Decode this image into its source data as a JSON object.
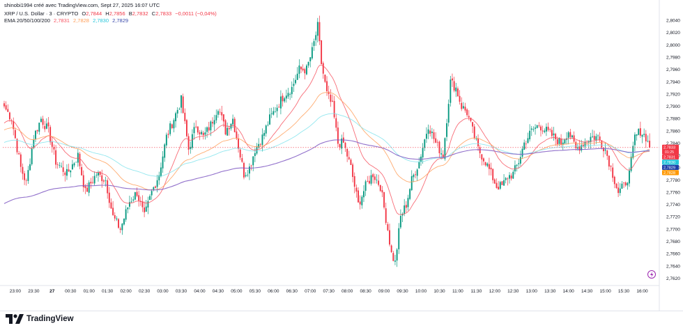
{
  "header": {
    "credit": "shinobi1994 créé avec TradingView.com, Sept 27, 2025 16:07 UTC"
  },
  "legend": {
    "symbol": "XRP / U.S. Dollar · 3 · CRYPTO",
    "o_label": "O",
    "o": "2,7844",
    "h_label": "H",
    "h": "2,7856",
    "l_label": "B",
    "l": "2,7832",
    "c_label": "C",
    "c": "2,7833",
    "change": "−0,0011 (−0,04%)",
    "ema_label": "EMA 20/50/100/200",
    "ema20": "2,7831",
    "ema50": "2,7828",
    "ema100": "2,7830",
    "ema200": "2,7829"
  },
  "price_badges": [
    {
      "text": "2,7833",
      "sub": "01:25",
      "color": "#f23645",
      "value": 2.7833
    },
    {
      "text": "2,7831",
      "color": "#f23645",
      "value": 2.7831
    },
    {
      "text": "2,7830",
      "color": "#26c6da",
      "value": 2.783
    },
    {
      "text": "2,7829",
      "color": "#1e3fa8",
      "value": 2.7829
    },
    {
      "text": "2,7828",
      "color": "#ff9800",
      "value": 2.7828
    }
  ],
  "colors": {
    "up": "#089981",
    "down": "#f23645",
    "ema20": "#f7525f",
    "ema50": "#ff9e58",
    "ema100": "#7fe3ec",
    "ema200": "#7e57c2",
    "price_line": "#f23645"
  },
  "brand": {
    "name": "TradingView"
  },
  "chart_data": {
    "type": "candlestick",
    "y_ticks": [
      "2,8040",
      "2,8020",
      "2,8000",
      "2,7980",
      "2,7960",
      "2,7940",
      "2,7920",
      "2,7900",
      "2,7880",
      "2,7860",
      "2,7840",
      "2,7820",
      "2,7800",
      "2,7780",
      "2,7760",
      "2,7740",
      "2,7720",
      "2,7700",
      "2,7680",
      "2,7660",
      "2,7640",
      "2,7620"
    ],
    "ylim": [
      2.7615,
      2.8046
    ],
    "x_ticks": [
      "23:00",
      "23:30",
      "27",
      "00:30",
      "01:00",
      "01:30",
      "02:00",
      "02:30",
      "03:00",
      "03:30",
      "04:00",
      "04:30",
      "05:00",
      "05:30",
      "06:00",
      "06:30",
      "07:00",
      "07:30",
      "08:00",
      "08:30",
      "09:00",
      "09:30",
      "10:00",
      "10:30",
      "11:00",
      "11:30",
      "12:00",
      "12:30",
      "13:00",
      "13:30",
      "14:00",
      "14:30",
      "15:00",
      "15:30",
      "16:00"
    ],
    "x_tick_index": [
      6,
      16,
      26,
      36,
      46,
      56,
      66,
      76,
      86,
      96,
      106,
      116,
      126,
      136,
      146,
      156,
      166,
      176,
      186,
      196,
      206,
      216,
      226,
      236,
      246,
      256,
      266,
      276,
      286,
      296,
      306,
      316,
      326,
      336,
      346
    ],
    "close_anchors": [
      [
        0,
        2.79
      ],
      [
        4,
        2.788
      ],
      [
        9,
        2.78
      ],
      [
        12,
        2.7775
      ],
      [
        16,
        2.785
      ],
      [
        20,
        2.788
      ],
      [
        24,
        2.786
      ],
      [
        28,
        2.781
      ],
      [
        34,
        2.779
      ],
      [
        40,
        2.782
      ],
      [
        44,
        2.776
      ],
      [
        50,
        2.779
      ],
      [
        55,
        2.778
      ],
      [
        59,
        2.772
      ],
      [
        63,
        2.77
      ],
      [
        68,
        2.7745
      ],
      [
        72,
        2.776
      ],
      [
        76,
        2.772
      ],
      [
        80,
        2.776
      ],
      [
        84,
        2.779
      ],
      [
        88,
        2.785
      ],
      [
        92,
        2.788
      ],
      [
        96,
        2.791
      ],
      [
        100,
        2.783
      ],
      [
        104,
        2.787
      ],
      [
        108,
        2.785
      ],
      [
        112,
        2.787
      ],
      [
        116,
        2.79
      ],
      [
        120,
        2.786
      ],
      [
        124,
        2.788
      ],
      [
        128,
        2.782
      ],
      [
        130,
        2.779
      ],
      [
        133,
        2.78
      ],
      [
        136,
        2.783
      ],
      [
        140,
        2.785
      ],
      [
        144,
        2.788
      ],
      [
        148,
        2.79
      ],
      [
        152,
        2.792
      ],
      [
        156,
        2.793
      ],
      [
        160,
        2.796
      ],
      [
        164,
        2.796
      ],
      [
        167,
        2.799
      ],
      [
        170,
        2.803
      ],
      [
        172,
        2.797
      ],
      [
        175,
        2.792
      ],
      [
        178,
        2.79
      ],
      [
        181,
        2.784
      ],
      [
        184,
        2.784
      ],
      [
        188,
        2.78
      ],
      [
        192,
        2.774
      ],
      [
        196,
        2.777
      ],
      [
        200,
        2.779
      ],
      [
        204,
        2.777
      ],
      [
        208,
        2.77
      ],
      [
        210,
        2.766
      ],
      [
        212,
        2.7645
      ],
      [
        215,
        2.772
      ],
      [
        218,
        2.774
      ],
      [
        221,
        2.778
      ],
      [
        225,
        2.781
      ],
      [
        230,
        2.787
      ],
      [
        234,
        2.784
      ],
      [
        238,
        2.782
      ],
      [
        242,
        2.794
      ],
      [
        245,
        2.793
      ],
      [
        248,
        2.79
      ],
      [
        251,
        2.789
      ],
      [
        254,
        2.786
      ],
      [
        257,
        2.783
      ],
      [
        261,
        2.781
      ],
      [
        264,
        2.779
      ],
      [
        267,
        2.777
      ],
      [
        270,
        2.777
      ],
      [
        273,
        2.7785
      ],
      [
        276,
        2.779
      ],
      [
        279,
        2.781
      ],
      [
        282,
        2.784
      ],
      [
        286,
        2.786
      ],
      [
        290,
        2.787
      ],
      [
        294,
        2.786
      ],
      [
        298,
        2.785
      ],
      [
        302,
        2.784
      ],
      [
        306,
        2.786
      ],
      [
        310,
        2.783
      ],
      [
        314,
        2.784
      ],
      [
        318,
        2.785
      ],
      [
        322,
        2.785
      ],
      [
        326,
        2.783
      ],
      [
        330,
        2.779
      ],
      [
        333,
        2.776
      ],
      [
        336,
        2.777
      ],
      [
        339,
        2.779
      ],
      [
        342,
        2.785
      ],
      [
        345,
        2.786
      ],
      [
        348,
        2.785
      ],
      [
        350,
        2.7833
      ]
    ],
    "last": {
      "open": 2.7844,
      "high": 2.7856,
      "low": 2.7832,
      "close": 2.7833
    }
  }
}
